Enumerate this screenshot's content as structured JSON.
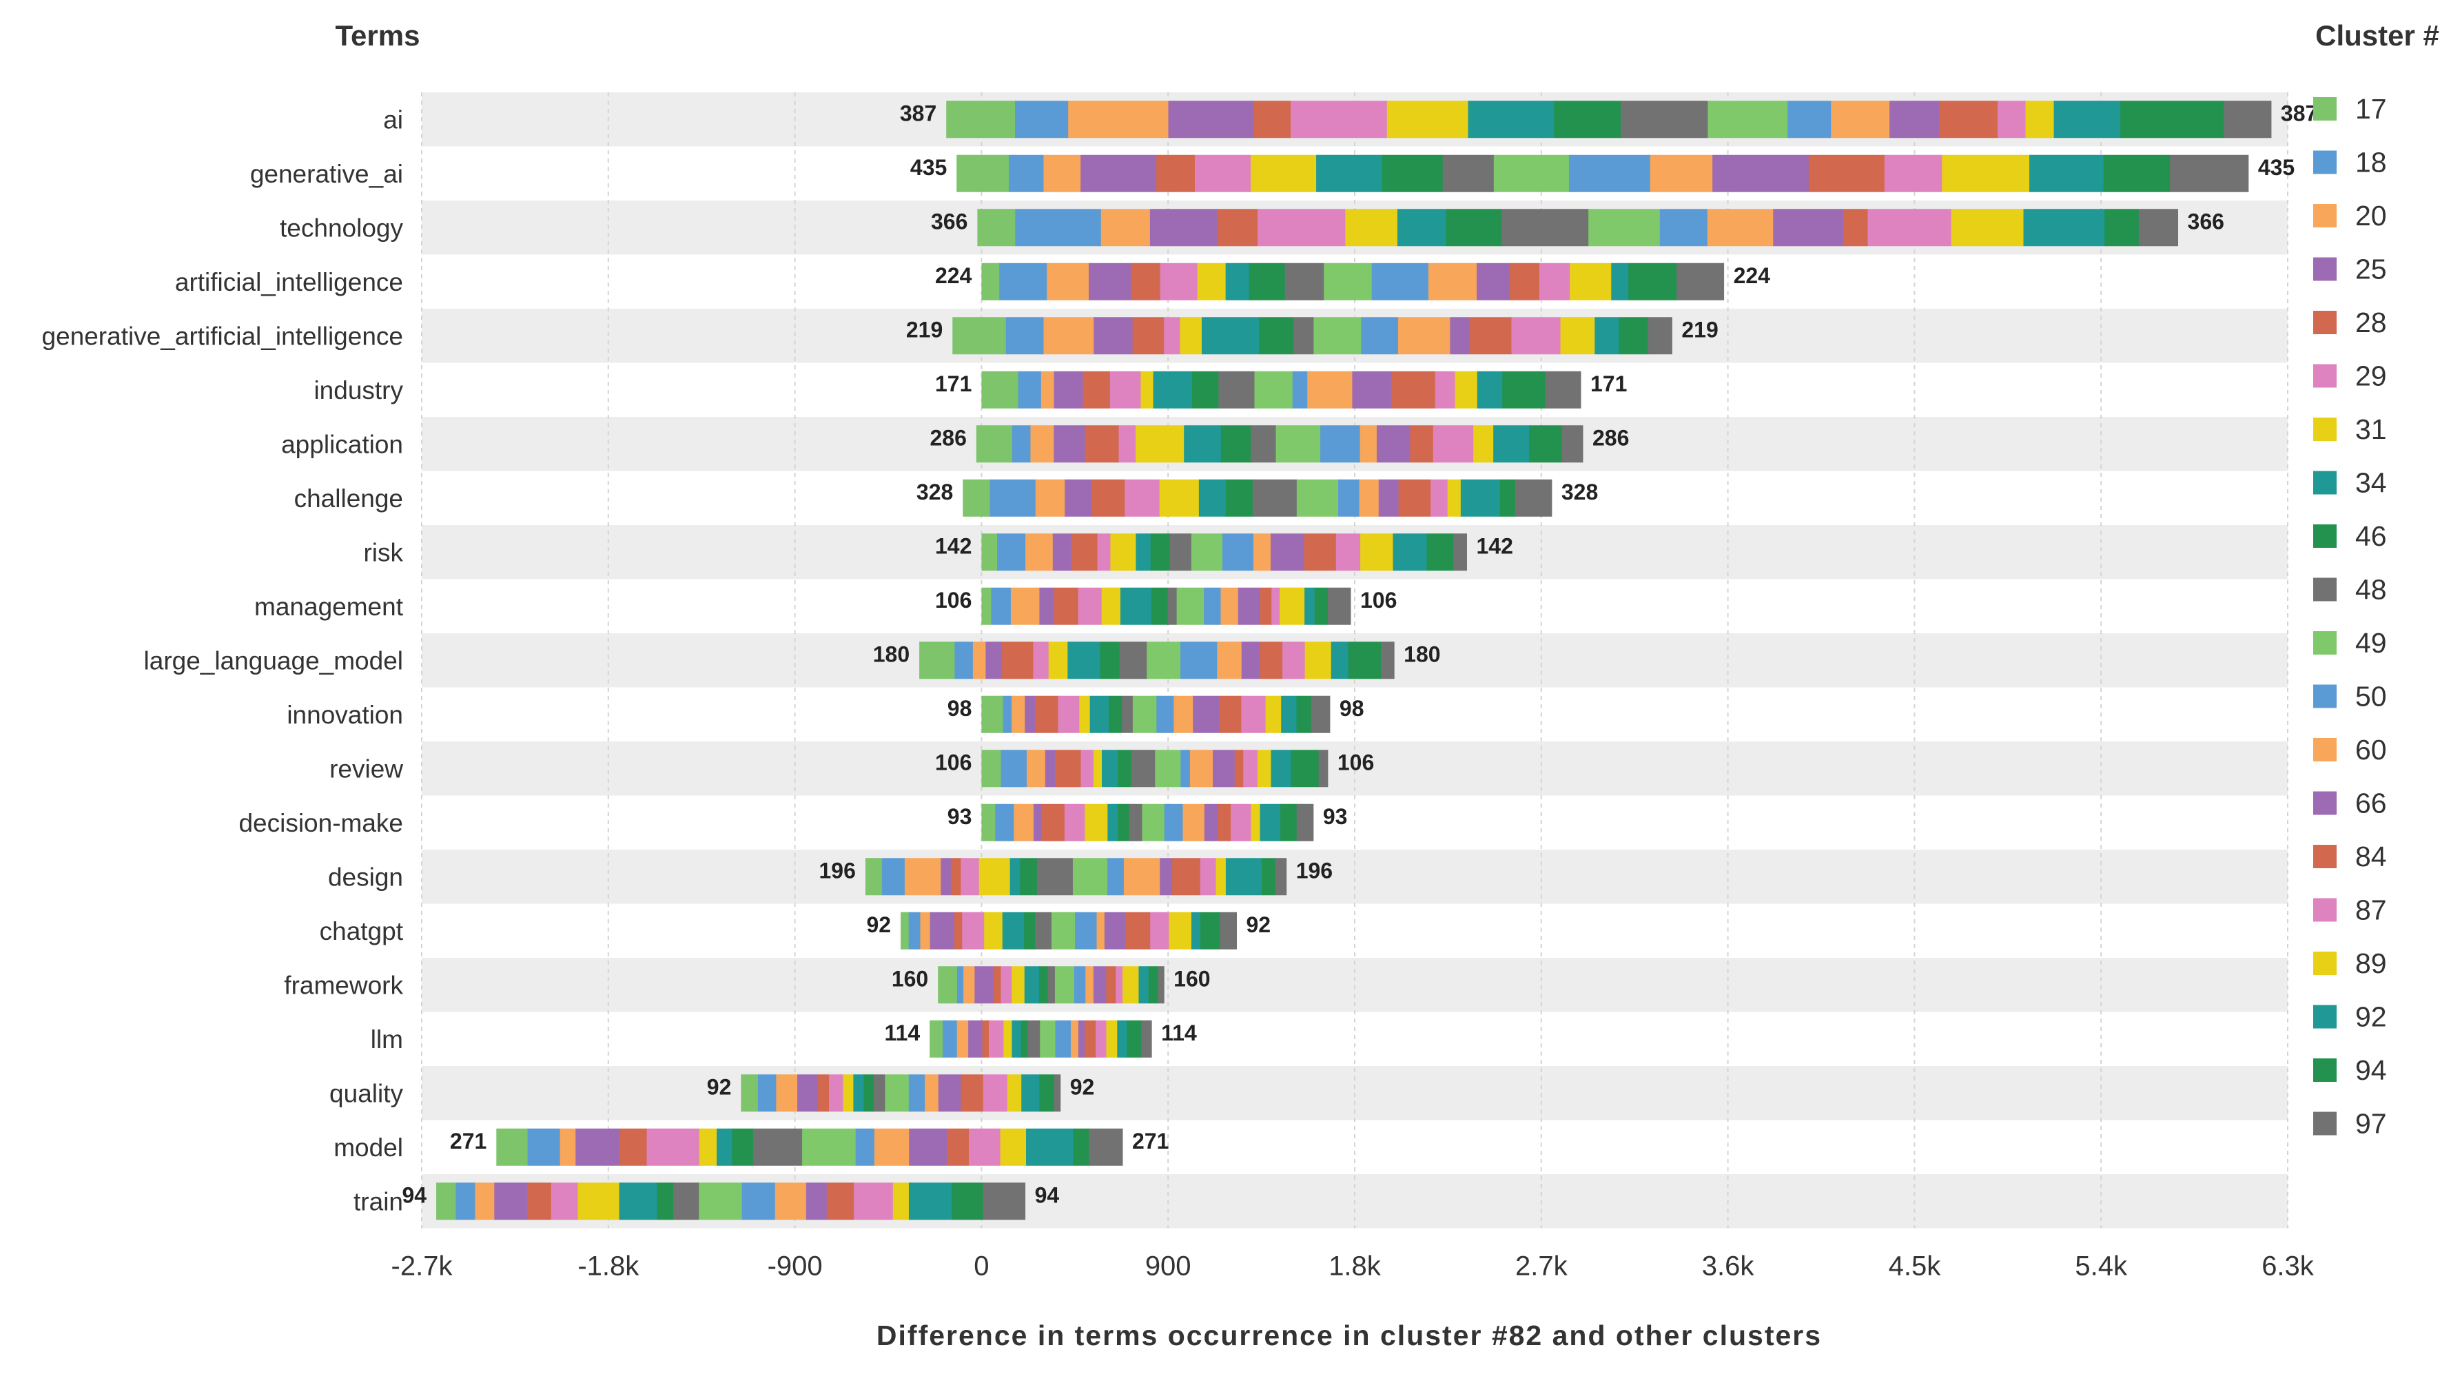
{
  "chart_data": {
    "type": "bar",
    "stacked": true,
    "orientation": "horizontal",
    "title": "",
    "y_header": "Terms",
    "legend_title": "Cluster #",
    "xlabel": "Difference in terms occurrence in cluster #82 and other clusters",
    "xlim": [
      -2700,
      6300
    ],
    "xticks": [
      -2700,
      -1800,
      -900,
      0,
      900,
      1800,
      2700,
      3600,
      4500,
      5400,
      6300
    ],
    "xtick_labels": [
      "-2.7k",
      "-1.8k",
      "-900",
      "0",
      "900",
      "1.8k",
      "2.7k",
      "3.6k",
      "4.5k",
      "5.4k",
      "6.3k"
    ],
    "legend": [
      {
        "name": "17",
        "color": "#7dc46a"
      },
      {
        "name": "18",
        "color": "#5b9bd5"
      },
      {
        "name": "20",
        "color": "#f7a65a"
      },
      {
        "name": "25",
        "color": "#9c6bb3"
      },
      {
        "name": "28",
        "color": "#d2694f"
      },
      {
        "name": "29",
        "color": "#de83c0"
      },
      {
        "name": "31",
        "color": "#e8d016"
      },
      {
        "name": "34",
        "color": "#1f9896"
      },
      {
        "name": "46",
        "color": "#24924f"
      },
      {
        "name": "48",
        "color": "#727272"
      },
      {
        "name": "49",
        "color": "#80c96a"
      },
      {
        "name": "50",
        "color": "#5b9bd5"
      },
      {
        "name": "60",
        "color": "#f7a65a"
      },
      {
        "name": "66",
        "color": "#9c6bb3"
      },
      {
        "name": "84",
        "color": "#d2694f"
      },
      {
        "name": "87",
        "color": "#de83c0"
      },
      {
        "name": "89",
        "color": "#e8d016"
      },
      {
        "name": "92",
        "color": "#1f9896"
      },
      {
        "name": "94",
        "color": "#24924f"
      },
      {
        "name": "97",
        "color": "#727272"
      }
    ],
    "terms": [
      {
        "term": "ai",
        "label": "387",
        "start": -170,
        "end": 6220
      },
      {
        "term": "generative_ai",
        "label": "435",
        "start": -120,
        "end": 6110
      },
      {
        "term": "technology",
        "label": "366",
        "start": -20,
        "end": 5770
      },
      {
        "term": "artificial_intelligence",
        "label": "224",
        "start": 0,
        "end": 3580
      },
      {
        "term": "generative_artificial_intelligence",
        "label": "219",
        "start": -140,
        "end": 3330
      },
      {
        "term": "industry",
        "label": "171",
        "start": 0,
        "end": 2890
      },
      {
        "term": "application",
        "label": "286",
        "start": -25,
        "end": 2900
      },
      {
        "term": "challenge",
        "label": "328",
        "start": -90,
        "end": 2750
      },
      {
        "term": "risk",
        "label": "142",
        "start": 0,
        "end": 2340
      },
      {
        "term": "management",
        "label": "106",
        "start": 0,
        "end": 1780
      },
      {
        "term": "large_language_model",
        "label": "180",
        "start": -300,
        "end": 1990
      },
      {
        "term": "innovation",
        "label": "98",
        "start": 0,
        "end": 1680
      },
      {
        "term": "review",
        "label": "106",
        "start": 0,
        "end": 1670
      },
      {
        "term": "decision-make",
        "label": "93",
        "start": 0,
        "end": 1600
      },
      {
        "term": "design",
        "label": "196",
        "start": -560,
        "end": 1470
      },
      {
        "term": "chatgpt",
        "label": "92",
        "start": -390,
        "end": 1230
      },
      {
        "term": "framework",
        "label": "160",
        "start": -210,
        "end": 880
      },
      {
        "term": "llm",
        "label": "114",
        "start": -250,
        "end": 820
      },
      {
        "term": "quality",
        "label": "92",
        "start": -1160,
        "end": 380
      },
      {
        "term": "model",
        "label": "271",
        "start": -2340,
        "end": 680
      },
      {
        "term": "train",
        "label": "94",
        "start": -2630,
        "end": 210
      }
    ]
  }
}
